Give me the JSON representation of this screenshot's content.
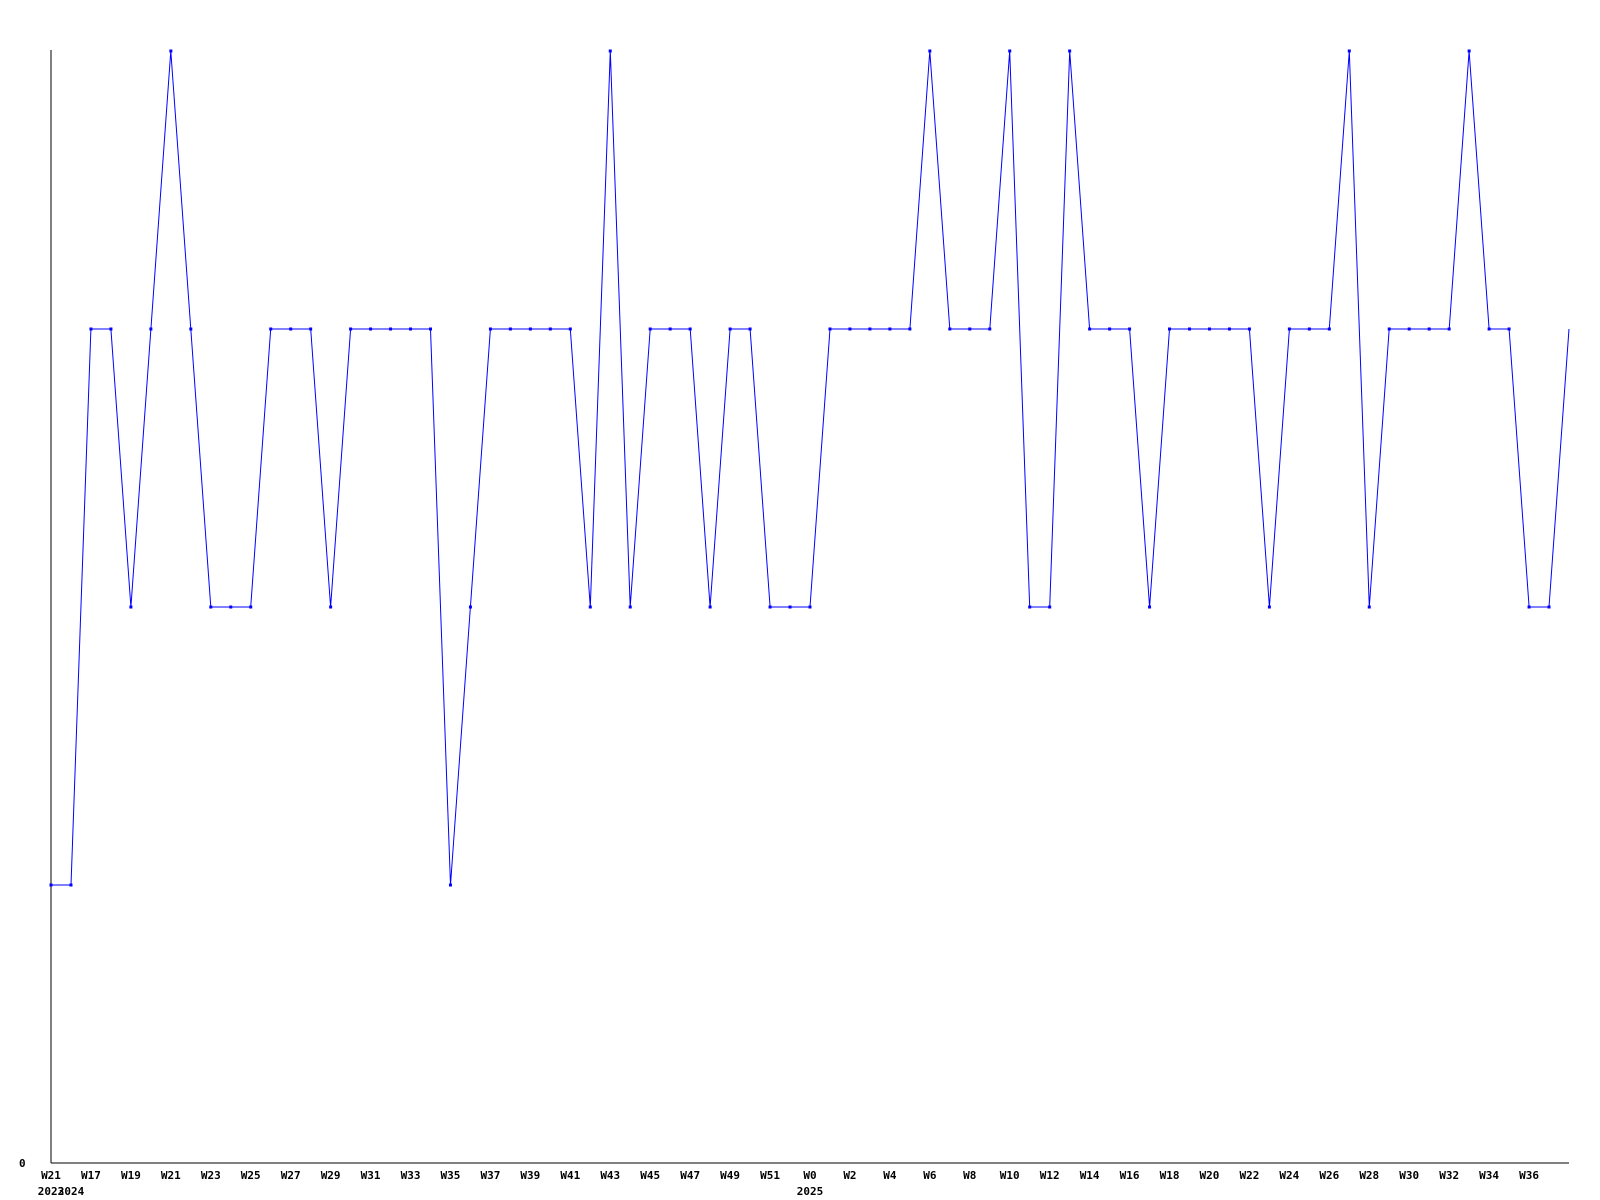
{
  "chart_data": {
    "type": "line",
    "title": "",
    "xlabel": "",
    "ylabel": "",
    "ylim": [
      0,
      4
    ],
    "y_tick_labels": [
      "0"
    ],
    "grid": false,
    "line_color": "#0000ff",
    "axis_color": "#000000",
    "x": [
      "2023 W21",
      "2024 W16",
      "2024 W17",
      "2024 W18",
      "2024 W19",
      "2024 W20",
      "2024 W21",
      "2024 W22",
      "2024 W23",
      "2024 W24",
      "2024 W25",
      "2024 W26",
      "2024 W27",
      "2024 W28",
      "2024 W29",
      "2024 W30",
      "2024 W31",
      "2024 W32",
      "2024 W33",
      "2024 W34",
      "2024 W35",
      "2024 W36",
      "2024 W37",
      "2024 W38",
      "2024 W39",
      "2024 W40",
      "2024 W41",
      "2024 W42",
      "2024 W43",
      "2024 W44",
      "2024 W45",
      "2024 W46",
      "2024 W47",
      "2024 W48",
      "2024 W49",
      "2024 W50",
      "2024 W51",
      "2024 W52",
      "2025 W0",
      "2025 W1",
      "2025 W2",
      "2025 W3",
      "2025 W4",
      "2025 W5",
      "2025 W6",
      "2025 W7",
      "2025 W8",
      "2025 W9",
      "2025 W10",
      "2025 W11",
      "2025 W12",
      "2025 W13",
      "2025 W14",
      "2025 W15",
      "2025 W16",
      "2025 W17",
      "2025 W18",
      "2025 W19",
      "2025 W20",
      "2025 W21",
      "2025 W22",
      "2025 W23",
      "2025 W24",
      "2025 W25",
      "2025 W26",
      "2025 W27",
      "2025 W28",
      "2025 W29",
      "2025 W30",
      "2025 W31",
      "2025 W32",
      "2025 W33",
      "2025 W34",
      "2025 W35",
      "2025 W36",
      "2025 W37",
      "2025 W38"
    ],
    "values": [
      1,
      1,
      3,
      3,
      2,
      3,
      4,
      3,
      2,
      2,
      2,
      3,
      3,
      3,
      2,
      3,
      3,
      3,
      3,
      3,
      1,
      2,
      3,
      3,
      3,
      3,
      3,
      2,
      4,
      2,
      3,
      3,
      3,
      2,
      3,
      3,
      2,
      2,
      2,
      3,
      3,
      3,
      3,
      3,
      4,
      3,
      3,
      3,
      4,
      2,
      2,
      4,
      3,
      3,
      3,
      2,
      3,
      3,
      3,
      3,
      3,
      2,
      3,
      3,
      3,
      4,
      2,
      3,
      3,
      3,
      3,
      4,
      3,
      3,
      2,
      2,
      3
    ],
    "x_tick_labels": [
      {
        "index": 0,
        "label": "W21"
      },
      {
        "index": 2,
        "label": "W17"
      },
      {
        "index": 4,
        "label": "W19"
      },
      {
        "index": 6,
        "label": "W21"
      },
      {
        "index": 8,
        "label": "W23"
      },
      {
        "index": 10,
        "label": "W25"
      },
      {
        "index": 12,
        "label": "W27"
      },
      {
        "index": 14,
        "label": "W29"
      },
      {
        "index": 16,
        "label": "W31"
      },
      {
        "index": 18,
        "label": "W33"
      },
      {
        "index": 20,
        "label": "W35"
      },
      {
        "index": 22,
        "label": "W37"
      },
      {
        "index": 24,
        "label": "W39"
      },
      {
        "index": 26,
        "label": "W41"
      },
      {
        "index": 28,
        "label": "W43"
      },
      {
        "index": 30,
        "label": "W45"
      },
      {
        "index": 32,
        "label": "W47"
      },
      {
        "index": 34,
        "label": "W49"
      },
      {
        "index": 36,
        "label": "W51"
      },
      {
        "index": 38,
        "label": "W0"
      },
      {
        "index": 40,
        "label": "W2"
      },
      {
        "index": 42,
        "label": "W4"
      },
      {
        "index": 44,
        "label": "W6"
      },
      {
        "index": 46,
        "label": "W8"
      },
      {
        "index": 48,
        "label": "W10"
      },
      {
        "index": 50,
        "label": "W12"
      },
      {
        "index": 52,
        "label": "W14"
      },
      {
        "index": 54,
        "label": "W16"
      },
      {
        "index": 56,
        "label": "W18"
      },
      {
        "index": 58,
        "label": "W20"
      },
      {
        "index": 60,
        "label": "W22"
      },
      {
        "index": 62,
        "label": "W24"
      },
      {
        "index": 64,
        "label": "W26"
      },
      {
        "index": 66,
        "label": "W28"
      },
      {
        "index": 68,
        "label": "W30"
      },
      {
        "index": 70,
        "label": "W32"
      },
      {
        "index": 72,
        "label": "W34"
      },
      {
        "index": 74,
        "label": "W36"
      }
    ],
    "year_labels": [
      {
        "index": 0,
        "label": "2023"
      },
      {
        "index": 1,
        "label": "2024"
      },
      {
        "index": 38,
        "label": "2025"
      }
    ]
  }
}
